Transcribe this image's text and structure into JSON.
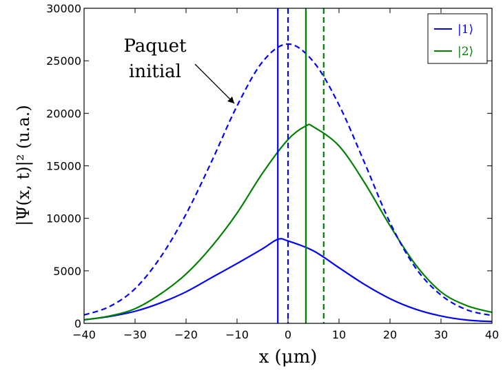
{
  "chart_data": {
    "type": "line",
    "xlabel": "x (μm)",
    "ylabel": "|Ψ(x, t)|² (u.a.)",
    "xlim": [
      -40,
      40
    ],
    "ylim": [
      0,
      30000
    ],
    "xticks": [
      -40,
      -30,
      -20,
      -10,
      0,
      10,
      20,
      30,
      40
    ],
    "yticks": [
      0,
      5000,
      10000,
      15000,
      20000,
      25000,
      30000
    ],
    "x_tick_labels": [
      "−40",
      "−30",
      "−20",
      "−10",
      "0",
      "10",
      "20",
      "30",
      "40"
    ],
    "y_tick_labels": [
      "0",
      "5000",
      "10000",
      "15000",
      "20000",
      "25000",
      "30000"
    ],
    "grid": false,
    "legend_position": "top-right",
    "legend": [
      {
        "label": "|1⟩",
        "color": "#0000ff"
      },
      {
        "label": "|2⟩",
        "color": "#008000"
      }
    ],
    "annotation": {
      "lines": [
        "Paquet",
        "initial"
      ],
      "arrow_to": [
        -10.5,
        20700
      ]
    },
    "series": [
      {
        "name": "|1⟩",
        "color": "#0000ff",
        "style": "solid",
        "x": [
          -40,
          -35,
          -30,
          -25,
          -20,
          -15,
          -10,
          -5,
          -2,
          0,
          5,
          10,
          15,
          20,
          25,
          30,
          35,
          40
        ],
        "y": [
          340,
          650,
          1150,
          1950,
          3000,
          4350,
          5700,
          7100,
          8000,
          7850,
          6900,
          5300,
          3700,
          2350,
          1350,
          700,
          320,
          170
        ]
      },
      {
        "name": "|2⟩",
        "color": "#008000",
        "style": "solid",
        "x": [
          -40,
          -35,
          -30,
          -25,
          -20,
          -15,
          -10,
          -5,
          0,
          3.5,
          5,
          10,
          15,
          20,
          25,
          30,
          35,
          40
        ],
        "y": [
          330,
          700,
          1400,
          2800,
          4700,
          7300,
          10500,
          14300,
          17500,
          18800,
          18700,
          16900,
          13400,
          9300,
          5600,
          3000,
          1700,
          1050
        ]
      },
      {
        "name": "Paquet initial",
        "color": "#0000ff",
        "style": "dashed",
        "x": [
          -40,
          -35,
          -30,
          -25,
          -20,
          -15,
          -10,
          -5,
          0,
          5,
          10,
          15,
          20,
          25,
          30,
          35,
          40
        ],
        "y": [
          800,
          1600,
          3300,
          6300,
          10400,
          15400,
          20700,
          24900,
          26600,
          24900,
          20800,
          15300,
          9600,
          5300,
          2700,
          1300,
          750
        ]
      }
    ],
    "vlines": [
      {
        "x": -2,
        "color": "#0000ff",
        "style": "solid"
      },
      {
        "x": 0,
        "color": "#0000ff",
        "style": "dashed"
      },
      {
        "x": 3.5,
        "color": "#008000",
        "style": "solid"
      },
      {
        "x": 7,
        "color": "#008000",
        "style": "dashed"
      }
    ]
  }
}
